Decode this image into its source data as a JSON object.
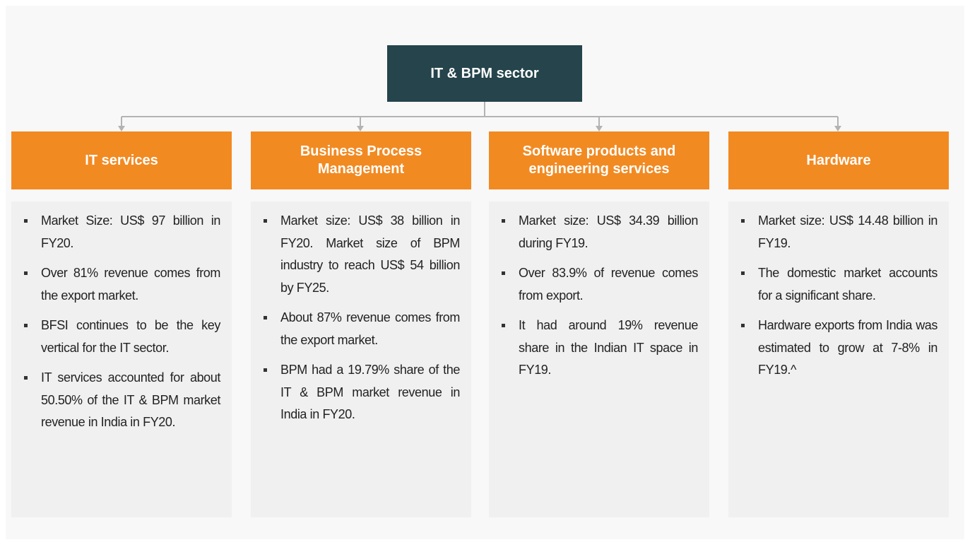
{
  "root": {
    "label": "IT & BPM sector"
  },
  "columns": [
    {
      "title": "IT services",
      "bullets": [
        "Market Size: US$ 97 billion in FY20.",
        "Over 81% revenue comes from the export market.",
        "BFSI continues to be the key vertical for the IT sector.",
        "IT services accounted for about 50.50% of the IT & BPM market revenue in India in FY20."
      ]
    },
    {
      "title": "Business Process Management",
      "bullets": [
        "Market size: US$ 38 billion in FY20. Market size of BPM industry to reach US$ 54 billion by FY25.",
        "About 87% revenue comes from the export market.",
        "BPM had a 19.79% share of the IT & BPM market revenue in India in FY20."
      ]
    },
    {
      "title": "Software products and engineering services",
      "bullets": [
        "Market size: US$ 34.39 billion during FY19.",
        "Over 83.9% of revenue comes from export.",
        "It had around 19% revenue share in the Indian IT space in FY19."
      ]
    },
    {
      "title": "Hardware",
      "bullets": [
        "Market size: US$ 14.48 billion in FY19.",
        "The domestic market accounts for a significant share.",
        "Hardware exports from India was estimated to grow at 7-8% in FY19.^"
      ]
    }
  ]
}
